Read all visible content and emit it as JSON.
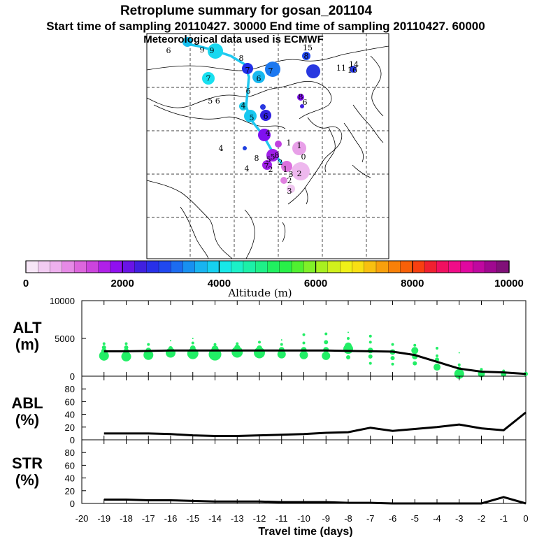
{
  "header": {
    "title": "Retroplume summary for gosan_201104",
    "line2": "Start time of sampling 20110427. 30000     End time of sampling 20110427. 60000",
    "line3": "Meteorological data used is ECMWF"
  },
  "colorbar": {
    "ticks": [
      "0",
      "2000",
      "4000",
      "6000",
      "8000",
      "10000"
    ],
    "label": "Altitude (m)",
    "colors": [
      "#f7e6f7",
      "#f2ccf2",
      "#eeb0ee",
      "#e68ae6",
      "#dd66dd",
      "#cc44dd",
      "#b020e8",
      "#9010f0",
      "#6a14e6",
      "#4020e0",
      "#2830e8",
      "#2048f0",
      "#1c6cf0",
      "#1890f0",
      "#18b4f0",
      "#16d0f0",
      "#18e8e8",
      "#1cf0c8",
      "#1cf0a8",
      "#1ef088",
      "#20f060",
      "#28f048",
      "#50f030",
      "#80f028",
      "#a8f020",
      "#d0f01c",
      "#f0f018",
      "#f8e014",
      "#f8c010",
      "#f8a00c",
      "#f88008",
      "#f86008",
      "#f84010",
      "#f02030",
      "#f01060",
      "#f00c88",
      "#e008a0",
      "#c008a0",
      "#a00890",
      "#801078"
    ]
  },
  "map_labels": [
    {
      "t": "6"
    },
    {
      "t": "9"
    },
    {
      "t": "9"
    },
    {
      "t": "8"
    },
    {
      "t": "7"
    },
    {
      "t": "6"
    },
    {
      "t": "7"
    },
    {
      "t": "7"
    },
    {
      "t": "6"
    },
    {
      "t": "5 6"
    },
    {
      "t": "4"
    },
    {
      "t": "5"
    },
    {
      "t": "6"
    },
    {
      "t": "4"
    },
    {
      "t": "4"
    },
    {
      "t": "5"
    },
    {
      "t": "8"
    },
    {
      "t": "7"
    },
    {
      "t": "4"
    },
    {
      "t": "2"
    },
    {
      "t": "8"
    },
    {
      "t": "1"
    },
    {
      "t": "1"
    },
    {
      "t": "0"
    },
    {
      "t": "2"
    },
    {
      "t": "2"
    },
    {
      "t": "3"
    },
    {
      "t": "15"
    },
    {
      "t": "8"
    },
    {
      "t": "14"
    },
    {
      "t": "16"
    },
    {
      "t": "11"
    },
    {
      "t": "8"
    },
    {
      "t": "6"
    },
    {
      "t": "1"
    },
    {
      "t": "5"
    },
    {
      "t": "3"
    },
    {
      "t": "2"
    }
  ],
  "chart_data": [
    {
      "type": "scatter+line",
      "title": "ALT (m)",
      "ylabel": "ALT\n(m)",
      "ylim": [
        0,
        10000
      ],
      "yticks": [
        "10000",
        "5000",
        "0"
      ],
      "x": [
        -19,
        -18,
        -17,
        -16,
        -15,
        -14,
        -13,
        -12,
        -11,
        -10,
        -9,
        -8,
        -7,
        -6,
        -5,
        -4,
        -3,
        -2,
        -1,
        0
      ],
      "median": [
        3300,
        3300,
        3350,
        3400,
        3400,
        3400,
        3400,
        3400,
        3400,
        3400,
        3400,
        3350,
        3300,
        3250,
        2800,
        1900,
        1000,
        600,
        500,
        300
      ],
      "points": [
        {
          "x": -19,
          "y": 2700,
          "s": 7
        },
        {
          "x": -19,
          "y": 3300,
          "s": 4
        },
        {
          "x": -19,
          "y": 3800,
          "s": 3
        },
        {
          "x": -19,
          "y": 4300,
          "s": 2
        },
        {
          "x": -18,
          "y": 2600,
          "s": 7
        },
        {
          "x": -18,
          "y": 3300,
          "s": 4
        },
        {
          "x": -18,
          "y": 3800,
          "s": 3
        },
        {
          "x": -18,
          "y": 4300,
          "s": 2
        },
        {
          "x": -17,
          "y": 2800,
          "s": 7
        },
        {
          "x": -17,
          "y": 3400,
          "s": 4
        },
        {
          "x": -17,
          "y": 4200,
          "s": 2
        },
        {
          "x": -16,
          "y": 3100,
          "s": 7
        },
        {
          "x": -16,
          "y": 3700,
          "s": 3
        },
        {
          "x": -16,
          "y": 4700,
          "s": 1
        },
        {
          "x": -15,
          "y": 3000,
          "s": 8
        },
        {
          "x": -15,
          "y": 3700,
          "s": 4
        },
        {
          "x": -15,
          "y": 4400,
          "s": 2
        },
        {
          "x": -15,
          "y": 5000,
          "s": 1
        },
        {
          "x": -14,
          "y": 2900,
          "s": 9
        },
        {
          "x": -14,
          "y": 3600,
          "s": 5
        },
        {
          "x": -14,
          "y": 4200,
          "s": 2
        },
        {
          "x": -13,
          "y": 3200,
          "s": 8
        },
        {
          "x": -13,
          "y": 3800,
          "s": 4
        },
        {
          "x": -13,
          "y": 4300,
          "s": 2
        },
        {
          "x": -12,
          "y": 3100,
          "s": 8
        },
        {
          "x": -12,
          "y": 3700,
          "s": 4
        },
        {
          "x": -12,
          "y": 4500,
          "s": 2
        },
        {
          "x": -11,
          "y": 2900,
          "s": 6
        },
        {
          "x": -11,
          "y": 3500,
          "s": 4
        },
        {
          "x": -11,
          "y": 4200,
          "s": 2
        },
        {
          "x": -11,
          "y": 4800,
          "s": 1
        },
        {
          "x": -10,
          "y": 2800,
          "s": 6
        },
        {
          "x": -10,
          "y": 3500,
          "s": 4
        },
        {
          "x": -10,
          "y": 4400,
          "s": 2
        },
        {
          "x": -10,
          "y": 5500,
          "s": 2
        },
        {
          "x": -9,
          "y": 2700,
          "s": 6
        },
        {
          "x": -9,
          "y": 3500,
          "s": 4
        },
        {
          "x": -9,
          "y": 4500,
          "s": 3
        },
        {
          "x": -9,
          "y": 5600,
          "s": 2
        },
        {
          "x": -8,
          "y": 3600,
          "s": 7
        },
        {
          "x": -8,
          "y": 4000,
          "s": 5
        },
        {
          "x": -8,
          "y": 2500,
          "s": 3
        },
        {
          "x": -8,
          "y": 5000,
          "s": 2
        },
        {
          "x": -8,
          "y": 5800,
          "s": 1
        },
        {
          "x": -7,
          "y": 3400,
          "s": 4
        },
        {
          "x": -7,
          "y": 2600,
          "s": 3
        },
        {
          "x": -7,
          "y": 1700,
          "s": 2
        },
        {
          "x": -7,
          "y": 4500,
          "s": 2
        },
        {
          "x": -7,
          "y": 5300,
          "s": 2
        },
        {
          "x": -6,
          "y": 3200,
          "s": 4
        },
        {
          "x": -6,
          "y": 2400,
          "s": 3
        },
        {
          "x": -6,
          "y": 1600,
          "s": 2
        },
        {
          "x": -6,
          "y": 4200,
          "s": 2
        },
        {
          "x": -5,
          "y": 3400,
          "s": 5
        },
        {
          "x": -5,
          "y": 2600,
          "s": 4
        },
        {
          "x": -5,
          "y": 1700,
          "s": 3
        },
        {
          "x": -5,
          "y": 4100,
          "s": 2
        },
        {
          "x": -4,
          "y": 1200,
          "s": 5
        },
        {
          "x": -4,
          "y": 2200,
          "s": 3
        },
        {
          "x": -4,
          "y": 2700,
          "s": 2
        },
        {
          "x": -4,
          "y": 3700,
          "s": 2
        },
        {
          "x": -3,
          "y": 300,
          "s": 7
        },
        {
          "x": -3,
          "y": 1000,
          "s": 3
        },
        {
          "x": -3,
          "y": 1500,
          "s": 2
        },
        {
          "x": -3,
          "y": 3100,
          "s": 1
        },
        {
          "x": -2,
          "y": 300,
          "s": 5
        },
        {
          "x": -2,
          "y": 900,
          "s": 2
        },
        {
          "x": -1,
          "y": 300,
          "s": 4
        },
        {
          "x": -1,
          "y": 700,
          "s": 2
        },
        {
          "x": 0,
          "y": 300,
          "s": 3
        }
      ]
    },
    {
      "type": "line",
      "title": "ABL (%)",
      "ylabel": "ABL\n(%)",
      "ylim": [
        0,
        100
      ],
      "yticks": [
        "80",
        "60",
        "40",
        "20",
        "0"
      ],
      "x": [
        -19,
        -18,
        -17,
        -16,
        -15,
        -14,
        -13,
        -12,
        -11,
        -10,
        -9,
        -8,
        -7,
        -6,
        -5,
        -4,
        -3,
        -2,
        -1,
        0
      ],
      "values": [
        10,
        10,
        10,
        9,
        7,
        6,
        6,
        7,
        8,
        9,
        11,
        12,
        19,
        14,
        17,
        20,
        24,
        18,
        15,
        43
      ]
    },
    {
      "type": "line",
      "title": "STR (%)",
      "ylabel": "STR\n(%)",
      "ylim": [
        0,
        100
      ],
      "yticks": [
        "80",
        "60",
        "40",
        "20",
        "0"
      ],
      "x": [
        -19,
        -18,
        -17,
        -16,
        -15,
        -14,
        -13,
        -12,
        -11,
        -10,
        -9,
        -8,
        -7,
        -6,
        -5,
        -4,
        -3,
        -2,
        -1,
        0
      ],
      "values": [
        6,
        6,
        5,
        5,
        4,
        3,
        3,
        3,
        2,
        2,
        2,
        1,
        1,
        0,
        0,
        0,
        0,
        0,
        10,
        0
      ]
    }
  ],
  "xaxis": {
    "ticks": [
      "-20",
      "-19",
      "-18",
      "-17",
      "-16",
      "-15",
      "-14",
      "-13",
      "-12",
      "-11",
      "-10",
      "-9",
      "-8",
      "-7",
      "-6",
      "-5",
      "-4",
      "-3",
      "-2",
      "-1",
      "0"
    ],
    "label": "Travel time (days)"
  }
}
